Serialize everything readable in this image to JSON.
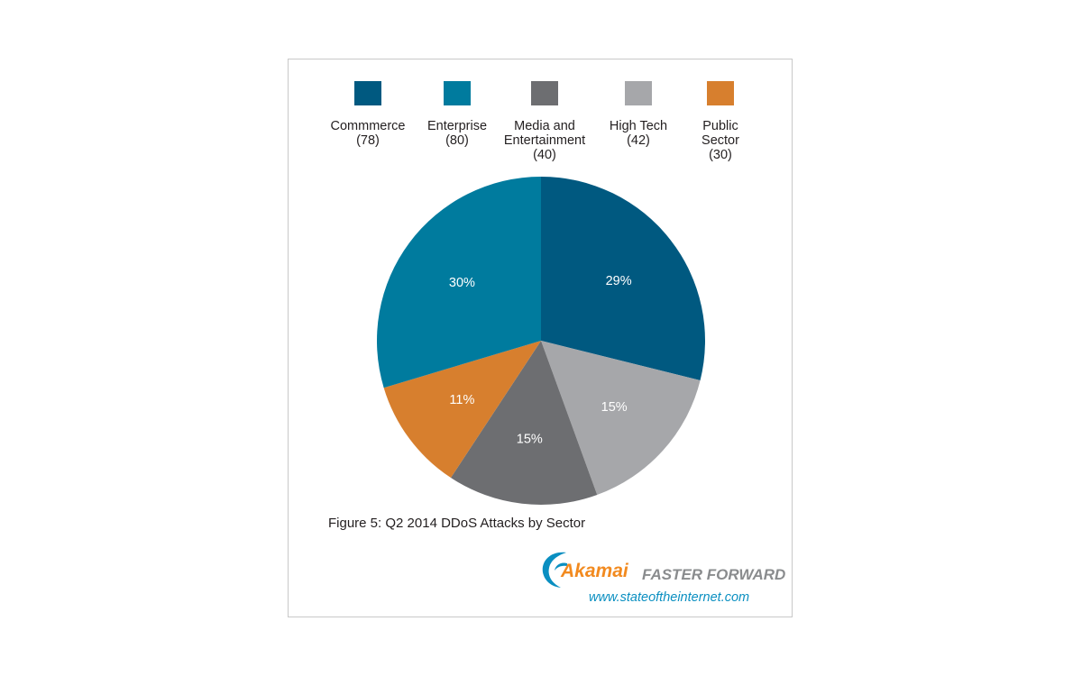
{
  "chart_data": {
    "type": "pie",
    "title": "",
    "caption": "Figure 5: Q2 2014 DDoS Attacks by Sector",
    "legend_position": "top",
    "slices": [
      {
        "name": "Commmerce",
        "count": "(78)",
        "value": 78,
        "label": "29%",
        "color": "#005980"
      },
      {
        "name": "High Tech",
        "count": "(42)",
        "value": 42,
        "label": "15%",
        "color": "#a6a7aa"
      },
      {
        "name": "Media and Entertainment",
        "name_lines": [
          "Media and",
          "Entertainment"
        ],
        "count": "(40)",
        "value": 40,
        "label": "15%",
        "color": "#6d6e71"
      },
      {
        "name": "Public Sector",
        "name_lines": [
          "Public",
          "Sector"
        ],
        "count": "(30)",
        "value": 30,
        "label": "11%",
        "color": "#d77f2e"
      },
      {
        "name": "Enterprise",
        "count": "(80)",
        "value": 80,
        "label": "30%",
        "color": "#007b9e"
      }
    ],
    "legend_order": [
      "Commmerce",
      "Enterprise",
      "Media and Entertainment",
      "High Tech",
      "Public Sector"
    ]
  },
  "branding": {
    "brand": "Akamai",
    "tagline": "FASTER FORWARD",
    "url": "www.stateoftheinternet.com"
  },
  "icons": {
    "logo": "akamai-wave-icon"
  }
}
